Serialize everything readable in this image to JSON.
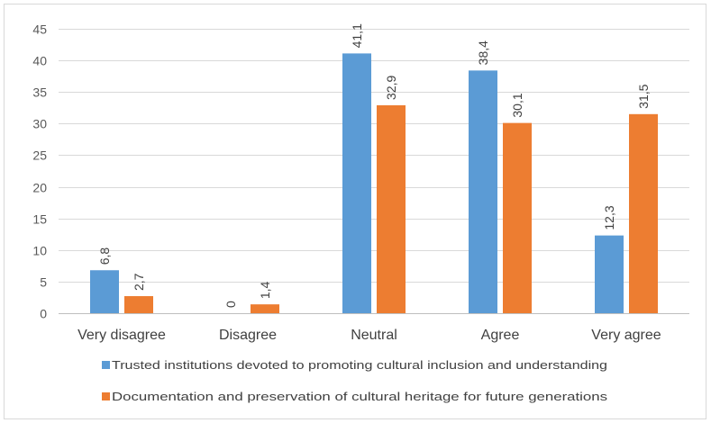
{
  "chart_data": {
    "type": "bar",
    "title": "",
    "xlabel": "",
    "ylabel": "",
    "ylim": [
      0,
      45
    ],
    "yticks": [
      0,
      5,
      10,
      15,
      20,
      25,
      30,
      35,
      40,
      45
    ],
    "grid": true,
    "legend_position": "bottom",
    "categories": [
      "Very disagree",
      "Disagree",
      "Neutral",
      "Agree",
      "Very agree"
    ],
    "series": [
      {
        "name": "Trusted institutions devoted to promoting cultural inclusion and understanding",
        "color": "#5B9BD5",
        "values": [
          6.8,
          0,
          41.1,
          38.4,
          12.3
        ],
        "labels": [
          "6,8",
          "0",
          "41,1",
          "38,4",
          "12,3"
        ]
      },
      {
        "name": "Documentation and preservation of cultural heritage for future generations",
        "color": "#ED7D31",
        "values": [
          2.7,
          1.4,
          32.9,
          30.1,
          31.5
        ],
        "labels": [
          "2,7",
          "1,4",
          "32,9",
          "30,1",
          "31,5"
        ]
      }
    ]
  }
}
